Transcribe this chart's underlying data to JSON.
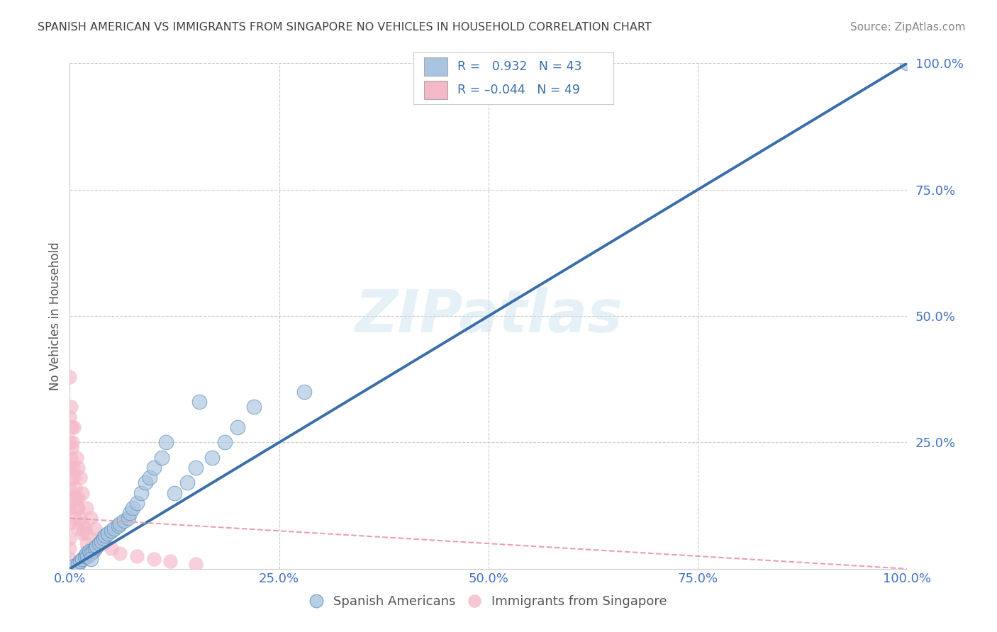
{
  "title": "SPANISH AMERICAN VS IMMIGRANTS FROM SINGAPORE NO VEHICLES IN HOUSEHOLD CORRELATION CHART",
  "source": "Source: ZipAtlas.com",
  "ylabel": "No Vehicles in Household",
  "xlim": [
    0,
    100
  ],
  "ylim": [
    0,
    100
  ],
  "xticks": [
    0,
    25,
    50,
    75,
    100
  ],
  "yticks": [
    0,
    25,
    50,
    75,
    100
  ],
  "xticklabels": [
    "0.0%",
    "25.0%",
    "50.0%",
    "75.0%",
    "100.0%"
  ],
  "yticklabels": [
    "",
    "25.0%",
    "50.0%",
    "75.0%",
    "100.0%"
  ],
  "blue_color": "#a8c4e0",
  "pink_color": "#f4b8c8",
  "blue_edge_color": "#5b8db8",
  "blue_line_color": "#3a6eaa",
  "pink_line_color": "#e8a0b0",
  "watermark": "ZIPatlas",
  "bg_color": "#ffffff",
  "grid_color": "#cccccc",
  "title_color": "#404040",
  "axis_label_color": "#4472c4",
  "spanish_x": [
    0.5,
    1.0,
    1.2,
    1.5,
    1.8,
    2.0,
    2.1,
    2.3,
    2.5,
    2.8,
    3.0,
    3.2,
    3.5,
    3.8,
    4.0,
    4.2,
    4.5,
    5.0,
    5.3,
    5.8,
    6.0,
    6.5,
    7.0,
    7.2,
    7.5,
    8.0,
    8.5,
    9.0,
    9.5,
    10.0,
    11.0,
    11.5,
    12.5,
    14.0,
    15.0,
    15.5,
    17.0,
    18.5,
    20.0,
    22.0,
    28.0,
    2.5,
    100.0
  ],
  "spanish_y": [
    0.5,
    1.0,
    1.5,
    2.0,
    2.5,
    3.0,
    2.5,
    3.5,
    3.0,
    3.5,
    4.0,
    4.5,
    5.0,
    5.5,
    6.0,
    6.5,
    7.0,
    7.5,
    8.0,
    8.5,
    9.0,
    9.5,
    10.0,
    11.0,
    12.0,
    13.0,
    15.0,
    17.0,
    18.0,
    20.0,
    22.0,
    25.0,
    15.0,
    17.0,
    20.0,
    33.0,
    22.0,
    25.0,
    28.0,
    32.0,
    35.0,
    2.0,
    100.0
  ],
  "singapore_x": [
    0.0,
    0.0,
    0.0,
    0.0,
    0.0,
    0.0,
    0.0,
    0.0,
    0.0,
    0.0,
    0.1,
    0.1,
    0.2,
    0.2,
    0.3,
    0.3,
    0.5,
    0.5,
    0.5,
    0.8,
    0.8,
    1.0,
    1.0,
    1.0,
    1.2,
    1.2,
    1.5,
    1.5,
    2.0,
    2.0,
    2.5,
    2.5,
    3.0,
    3.5,
    4.0,
    5.0,
    6.0,
    8.0,
    10.0,
    12.0,
    15.0,
    0.2,
    0.6,
    1.0,
    1.5,
    2.0,
    0.4,
    0.7,
    1.8
  ],
  "singapore_y": [
    38.0,
    30.0,
    25.0,
    20.0,
    16.0,
    12.0,
    9.0,
    6.0,
    4.0,
    2.0,
    32.0,
    22.0,
    28.0,
    18.0,
    25.0,
    14.0,
    28.0,
    18.0,
    10.0,
    22.0,
    12.0,
    20.0,
    14.0,
    8.0,
    18.0,
    10.0,
    15.0,
    7.0,
    12.0,
    5.0,
    10.0,
    4.0,
    8.0,
    6.0,
    5.0,
    4.0,
    3.0,
    2.5,
    2.0,
    1.5,
    1.0,
    24.0,
    16.0,
    12.0,
    9.0,
    7.0,
    20.0,
    14.0,
    8.0
  ],
  "blue_line_x0": 0,
  "blue_line_y0": 0,
  "blue_line_x1": 100,
  "blue_line_y1": 100,
  "pink_line_x0": 0,
  "pink_line_y0": 10,
  "pink_line_x1": 100,
  "pink_line_y1": 0
}
